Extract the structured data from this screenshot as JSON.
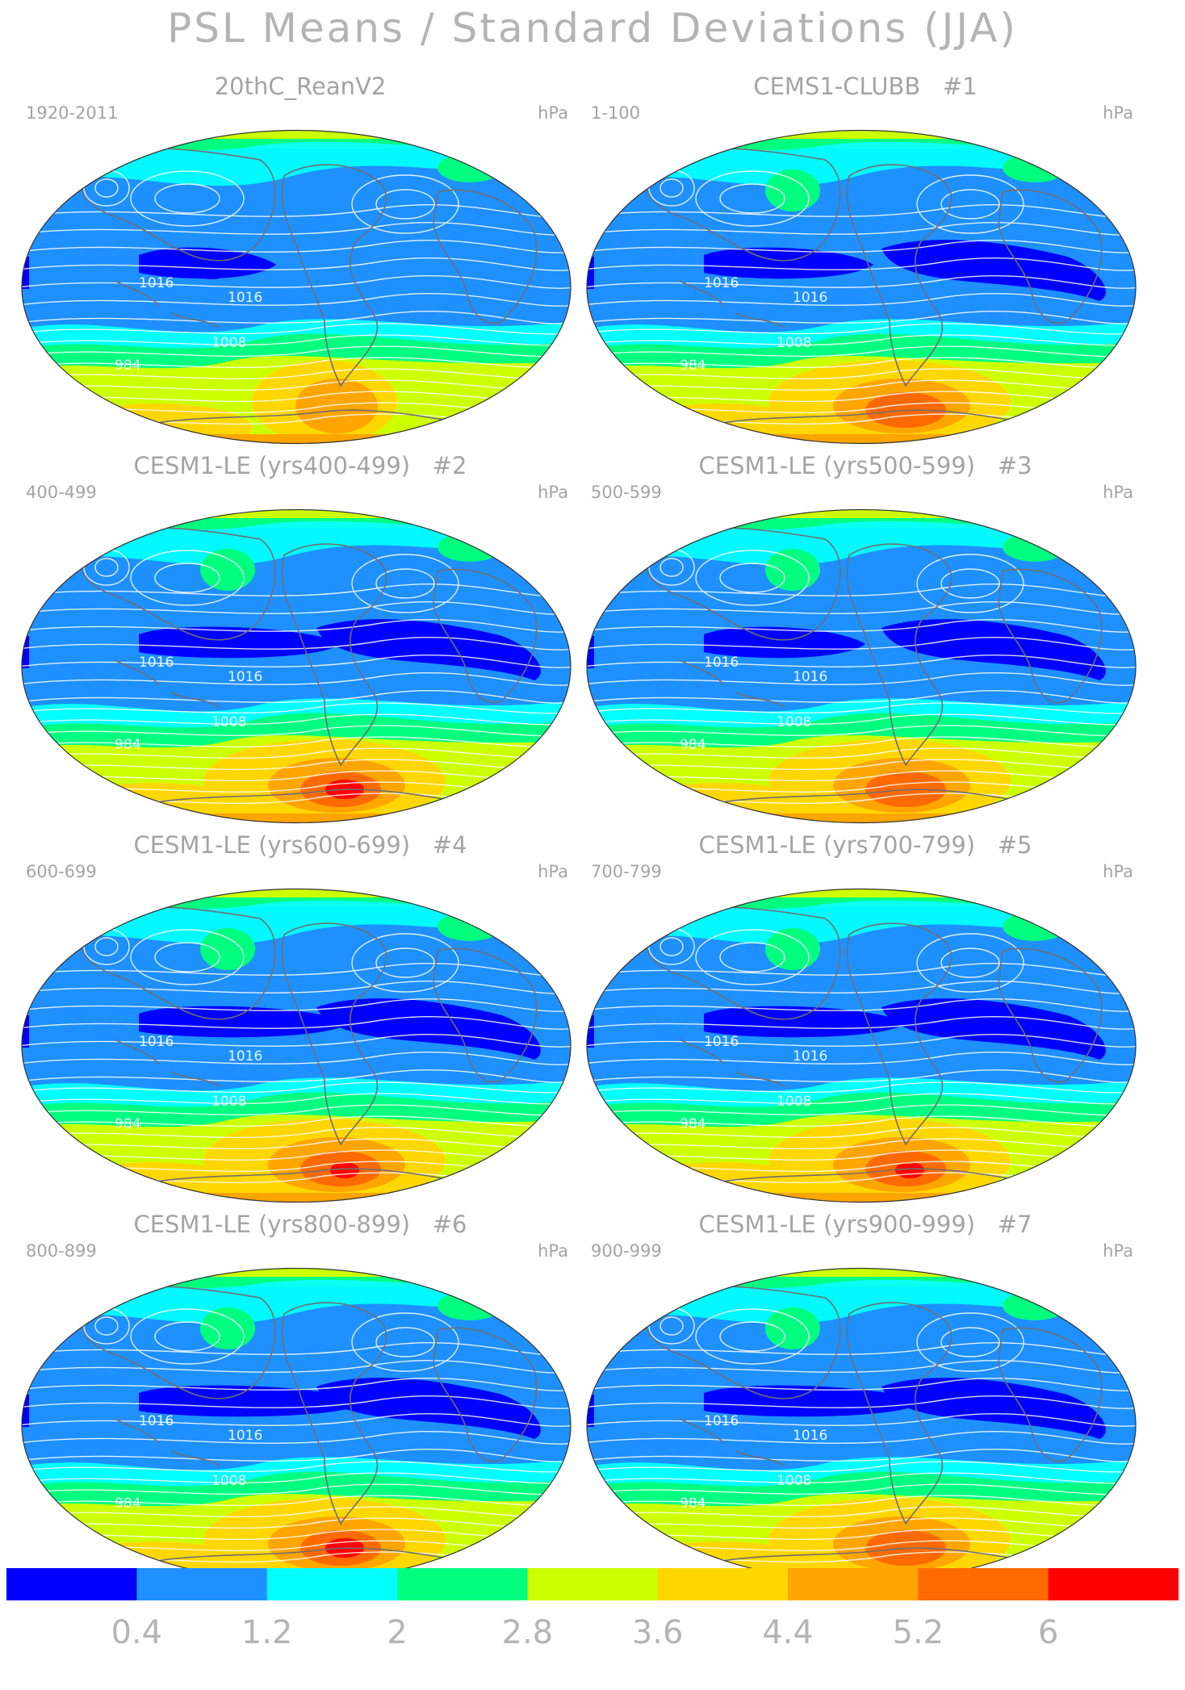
{
  "title": "PSL Means / Standard Deviations (JJA)",
  "units": "hPa",
  "panels": [
    {
      "title": "20thC_ReanV2",
      "number": "",
      "period": "1920-2011",
      "variant": 0
    },
    {
      "title": "CEMS1-CLUBB",
      "number": "#1",
      "period": "1-100",
      "variant": 1
    },
    {
      "title": "CESM1-LE (yrs400-499)",
      "number": "#2",
      "period": "400-499",
      "variant": 2
    },
    {
      "title": "CESM1-LE (yrs500-599)",
      "number": "#3",
      "period": "500-599",
      "variant": 3
    },
    {
      "title": "CESM1-LE (yrs600-699)",
      "number": "#4",
      "period": "600-699",
      "variant": 4
    },
    {
      "title": "CESM1-LE (yrs700-799)",
      "number": "#5",
      "period": "700-799",
      "variant": 5
    },
    {
      "title": "CESM1-LE (yrs800-899)",
      "number": "#6",
      "period": "800-899",
      "variant": 6
    },
    {
      "title": "CESM1-LE (yrs900-999)",
      "number": "#7",
      "period": "900-999",
      "variant": 7
    }
  ],
  "contour_labels": [
    "1016",
    "1008",
    "984"
  ],
  "colorbar": {
    "colors": [
      "#0000ff",
      "#1e90ff",
      "#00ffff",
      "#00ff7f",
      "#ccff00",
      "#ffd700",
      "#ffa500",
      "#ff6a00",
      "#ff0000"
    ],
    "labels": [
      "0.4",
      "1.2",
      "2",
      "2.8",
      "3.6",
      "4.4",
      "5.2",
      "6"
    ]
  }
}
